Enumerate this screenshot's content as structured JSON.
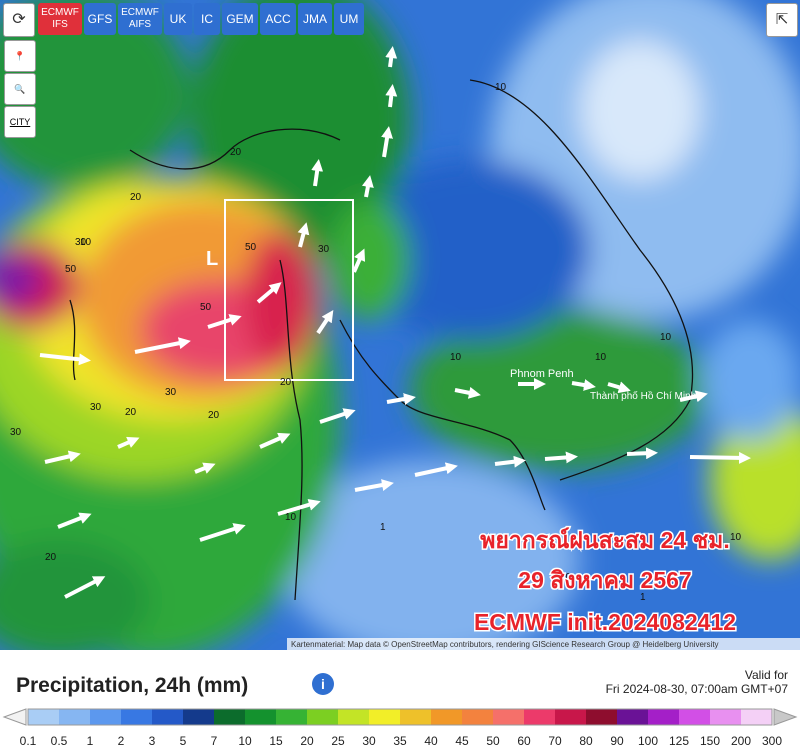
{
  "models": [
    "ECMWF IFS",
    "GFS",
    "ECMWF AIFS",
    "UK",
    "IC",
    "GEM",
    "ACC",
    "JMA",
    "UM"
  ],
  "city_button": "CITY",
  "map": {
    "low_marker": "L",
    "places": [
      "Phnom Penh",
      "Thành phố Hồ Chí Minh"
    ],
    "contour_labels": [
      "10",
      "20",
      "30",
      "50",
      "50",
      "30",
      "20",
      "30",
      "50",
      "30",
      "20",
      "10",
      "10",
      "10",
      "10",
      "1",
      "20",
      "30",
      "10",
      "20",
      "10",
      "1",
      "10",
      "20"
    ],
    "overlay": [
      "พยากรณ์ฝนสะสม 24 ชม.",
      "29 สิงหาคม 2567",
      "ECMWF init.2024082412"
    ],
    "attribution": "Kartenmaterial: Map data © OpenStreetMap contributors, rendering GIScience Research Group @ Heidelberg University"
  },
  "legend": {
    "title": "Precipitation, 24h (mm)",
    "valid_label": "Valid for",
    "valid_time": "Fri 2024-08-30, 07:00am GMT+07",
    "labels": [
      "0.1",
      "0.5",
      "1",
      "2",
      "3",
      "5",
      "7",
      "10",
      "15",
      "20",
      "25",
      "30",
      "35",
      "40",
      "45",
      "50",
      "60",
      "70",
      "80",
      "90",
      "100",
      "125",
      "150",
      "200",
      "300"
    ],
    "colors": [
      "#a9cdf5",
      "#86b6f2",
      "#5c98ee",
      "#3878e3",
      "#2459c8",
      "#143a8c",
      "#0c6c2c",
      "#14922e",
      "#36b334",
      "#7ccf22",
      "#c3e426",
      "#f2ee28",
      "#eec12a",
      "#f19828",
      "#f3823e",
      "#f5706a",
      "#ec3a6a",
      "#c8174a",
      "#8e0d2e",
      "#6a1296",
      "#a41fc8",
      "#d24fe6",
      "#e890f0",
      "#f4d0f6"
    ]
  }
}
